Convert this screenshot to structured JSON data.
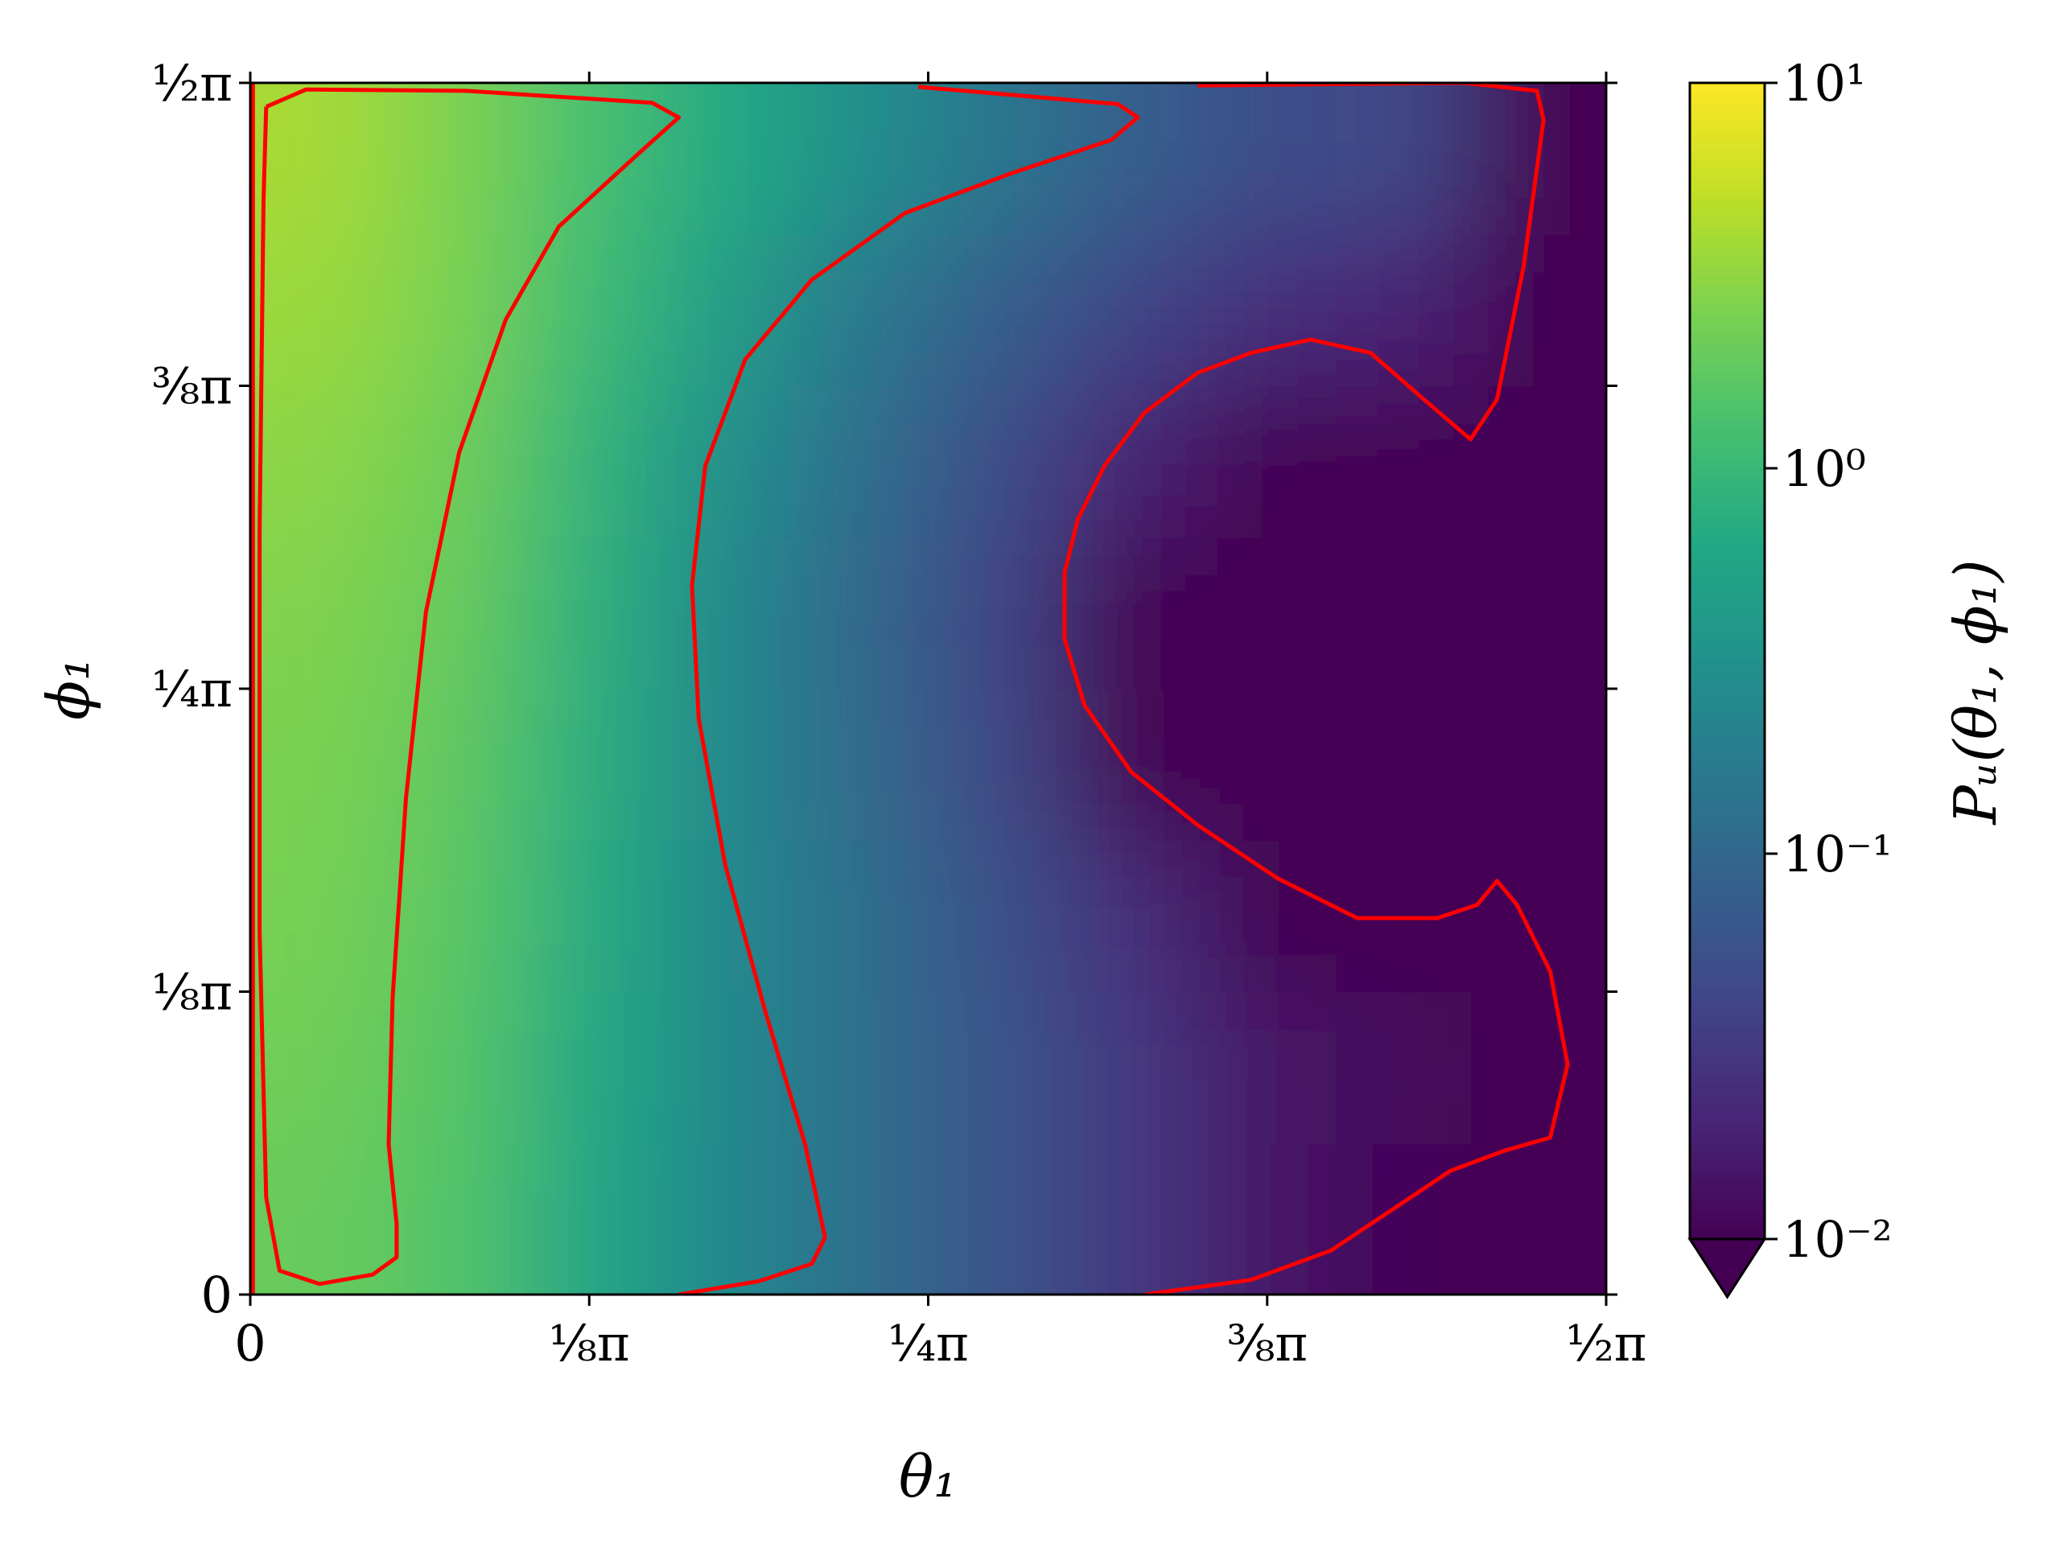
{
  "chart_data": {
    "type": "heatmap",
    "x_label": "θ₁",
    "y_label": "ϕ₁",
    "colorbar_label": "Pᵤ(θ₁, ϕ₁)",
    "xlim": [
      0,
      1.5708
    ],
    "ylim": [
      0,
      1.5708
    ],
    "xticks": [
      {
        "value": 0,
        "label": "0"
      },
      {
        "value": 0.3927,
        "label": "⅛π"
      },
      {
        "value": 0.7854,
        "label": "¼π"
      },
      {
        "value": 1.1781,
        "label": "⅜π"
      },
      {
        "value": 1.5708,
        "label": "½π"
      }
    ],
    "yticks": [
      {
        "value": 0,
        "label": "0"
      },
      {
        "value": 0.3927,
        "label": "⅛π"
      },
      {
        "value": 0.7854,
        "label": "¼π"
      },
      {
        "value": 1.1781,
        "label": "⅜π"
      },
      {
        "value": 1.5708,
        "label": "½π"
      }
    ],
    "color_scale": "log",
    "colormap": "viridis",
    "clim": [
      0.01,
      10
    ],
    "cticks": [
      {
        "value": 0.01,
        "label": "10⁻²"
      },
      {
        "value": 0.1,
        "label": "10⁻¹"
      },
      {
        "value": 1,
        "label": "10⁰"
      },
      {
        "value": 10,
        "label": "10¹"
      }
    ],
    "colorbar_extend": "min",
    "x": [
      0.0785,
      0.2356,
      0.3927,
      0.5498,
      0.7069,
      0.8639,
      1.021,
      1.1781,
      1.3352,
      1.4923
    ],
    "y": [
      0.0982,
      0.2945,
      0.4909,
      0.6872,
      0.8836,
      1.0799,
      1.2763,
      1.4726
    ],
    "z": [
      [
        2,
        1.5,
        0.6,
        0.25,
        0.12,
        0.06,
        0.03,
        0.015,
        0.011,
        0.005
      ],
      [
        2.2,
        1.6,
        0.65,
        0.25,
        0.12,
        0.06,
        0.03,
        0.015,
        0.012,
        0.005
      ],
      [
        2.4,
        1.7,
        0.7,
        0.25,
        0.12,
        0.055,
        0.025,
        0.009,
        0.008,
        0.004
      ],
      [
        2.5,
        1.8,
        0.75,
        0.25,
        0.11,
        0.045,
        0.009,
        0.004,
        0.003,
        0.003
      ],
      [
        2.7,
        2,
        0.8,
        0.25,
        0.1,
        0.04,
        0.008,
        0.003,
        0.003,
        0.003
      ],
      [
        3,
        2.2,
        0.9,
        0.3,
        0.12,
        0.05,
        0.02,
        0.008,
        0.006,
        0.004
      ],
      [
        3.5,
        2.5,
        1.1,
        0.45,
        0.16,
        0.08,
        0.04,
        0.025,
        0.02,
        0.004
      ],
      [
        4,
        2.6,
        1.3,
        0.65,
        0.3,
        0.15,
        0.08,
        0.05,
        0.045,
        0.005
      ]
    ],
    "contour_color": "#ff0000",
    "contours": [
      {
        "x": [
          0.0185,
          0.0647,
          0.2497,
          0.4655,
          0.4964,
          0.4501,
          0.3576,
          0.296,
          0.242,
          0.2035,
          0.1804,
          0.1649,
          0.1603,
          0.1696,
          0.1696,
          0.1418,
          0.0802,
          0.0339,
          0.0185,
          0.0108,
          0.0108,
          0.0154,
          0.0185
        ],
        "y": [
          1.5398,
          1.5622,
          1.5605,
          1.545,
          1.526,
          1.4794,
          1.3846,
          1.2639,
          1.0915,
          0.8846,
          0.6432,
          0.3845,
          0.1948,
          0.0914,
          0.0483,
          0.0259,
          0.0138,
          0.031,
          0.1259,
          0.4707,
          0.988,
          1.4191,
          1.5398
        ]
      },
      {
        "x": [
          0.0031,
          0.0031
        ],
        "y": [
          0,
          1.5708
        ]
      },
      {
        "x": [
          0.7738,
          1.0051,
          1.0282,
          0.9974,
          0.8817,
          0.7584,
          0.6505,
          0.5734,
          0.5272,
          0.5118,
          0.5195,
          0.5503,
          0.5966,
          0.6428,
          0.6659,
          0.6505,
          0.5889,
          0.4964
        ],
        "y": [
          1.5657,
          1.5433,
          1.526,
          1.4967,
          1.4536,
          1.4019,
          1.3156,
          1.2122,
          1.0742,
          0.9191,
          0.7466,
          0.557,
          0.3673,
          0.1948,
          0.0741,
          0.0397,
          0.0172,
          0
        ]
      },
      {
        "x": [
          1.0359,
          1.1592,
          1.2517,
          1.3442,
          1.3904,
          1.4521,
          1.506,
          1.5261,
          1.506,
          1.4675,
          1.4444,
          1.4213,
          1.375,
          1.2825,
          1.19,
          1.0975,
          1.0205,
          0.9665,
          0.9434,
          0.9434,
          0.9588,
          0.9896,
          1.0359,
          1.0975,
          1.1592,
          1.2286,
          1.2979,
          1.3596,
          1.4136,
          1.4444,
          1.4752,
          1.4983,
          1.4906,
          1.4059,
          1.0975
        ],
        "y": [
          0,
          0.019,
          0.0569,
          0.1259,
          0.1604,
          0.1862,
          0.2035,
          0.2983,
          0.419,
          0.5052,
          0.5363,
          0.5052,
          0.488,
          0.488,
          0.5397,
          0.6087,
          0.6776,
          0.7639,
          0.8501,
          0.9363,
          1.0053,
          1.0742,
          1.1432,
          1.1949,
          1.2208,
          1.238,
          1.2208,
          1.1605,
          1.1087,
          1.1605,
          1.3329,
          1.5226,
          1.5605,
          1.5708,
          1.5674
        ]
      }
    ]
  }
}
